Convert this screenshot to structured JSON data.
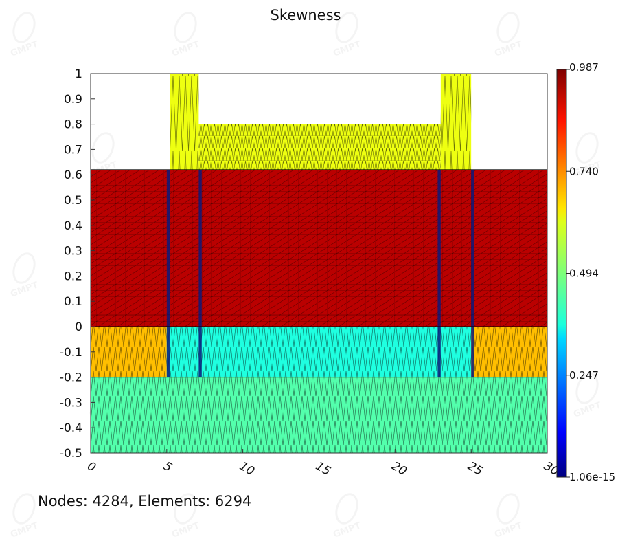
{
  "title": "Skewness",
  "status": "Nodes: 4284, Elements: 6294",
  "watermark": "GMPT",
  "colorbar": {
    "colormap": "jet",
    "min": 1.06e-15,
    "max": 0.987,
    "labels": [
      "0.987",
      "0.740",
      "0.494",
      "0.247",
      "1.06e-15"
    ]
  },
  "chart_data": {
    "type": "heatmap",
    "title": "Skewness",
    "xlim": [
      0,
      30
    ],
    "ylim": [
      -0.5,
      1
    ],
    "x_ticks": [
      "0",
      "5",
      "10",
      "15",
      "20",
      "25",
      "30"
    ],
    "y_ticks": [
      "1",
      "0.9",
      "0.8",
      "0.7",
      "0.6",
      "0.5",
      "0.4",
      "0.3",
      "0.2",
      "0.1",
      "0",
      "-0.1",
      "-0.2",
      "-0.3",
      "-0.4",
      "-0.5"
    ],
    "regions": [
      {
        "x": [
          0,
          30
        ],
        "y": [
          0,
          0.62
        ],
        "skewness": 0.93
      },
      {
        "x": [
          0,
          5
        ],
        "y": [
          -0.2,
          0
        ],
        "skewness": 0.68
      },
      {
        "x": [
          25,
          30
        ],
        "y": [
          -0.2,
          0
        ],
        "skewness": 0.68
      },
      {
        "x": [
          5,
          25
        ],
        "y": [
          -0.2,
          0
        ],
        "skewness": 0.4
      },
      {
        "x": [
          0,
          30
        ],
        "y": [
          -0.5,
          -0.2
        ],
        "skewness": 0.45
      },
      {
        "x": [
          5.2,
          7.1
        ],
        "y": [
          0.62,
          1
        ],
        "skewness": 0.6
      },
      {
        "x": [
          23,
          25
        ],
        "y": [
          0.62,
          1
        ],
        "skewness": 0.6
      },
      {
        "x": [
          7.1,
          23
        ],
        "y": [
          0.62,
          0.8
        ],
        "skewness": 0.6
      }
    ]
  }
}
